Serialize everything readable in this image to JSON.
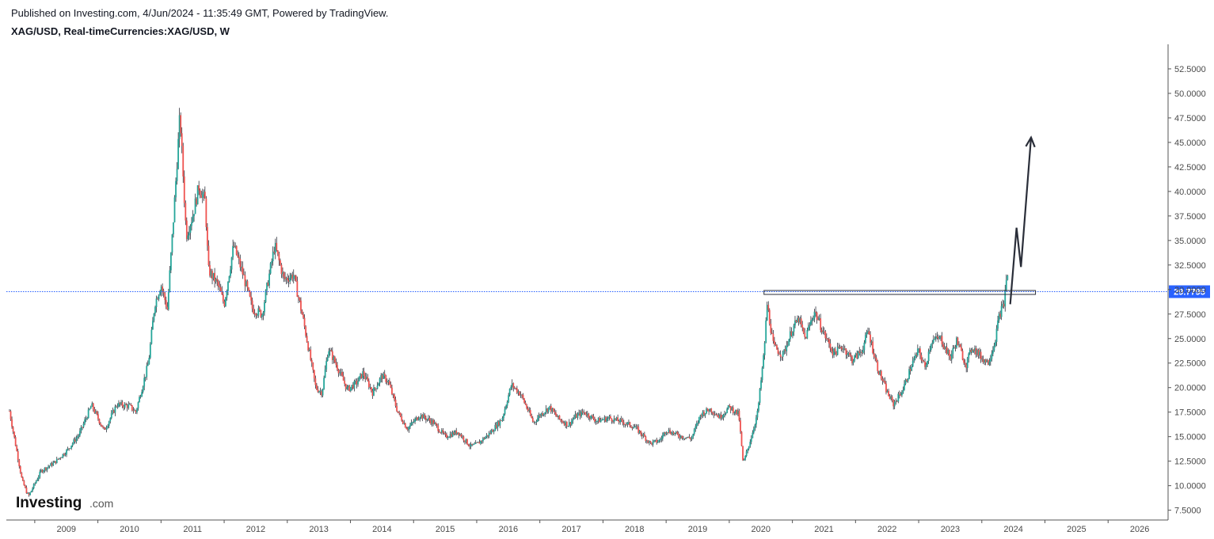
{
  "header": {
    "published": "Published on Investing.com, 4/Jun/2024 - 11:35:49 GMT, Powered by TradingView.",
    "symbol": "XAG/USD, Real-timeCurrencies:XAG/USD, W"
  },
  "logo": {
    "main": "Investing",
    "suffix": ".com"
  },
  "colors": {
    "up": "#26a69a",
    "down": "#ef5350",
    "wick": "#131722",
    "priceLine": "#2962ff",
    "annotation": "#2a2e39",
    "axis": "#555555"
  },
  "chart_data": {
    "type": "candlestick",
    "title": "XAG/USD, Real-timeCurrencies:XAG/USD, W",
    "interval": "weekly",
    "x_tick_labels": [
      "2009",
      "2010",
      "2011",
      "2012",
      "2013",
      "2014",
      "2015",
      "2016",
      "2017",
      "2018",
      "2019",
      "2020",
      "2021",
      "2022",
      "2023",
      "2024",
      "2025",
      "2026"
    ],
    "y_tick_labels": [
      "52.5000",
      "50.0000",
      "47.5000",
      "45.0000",
      "42.5000",
      "40.0000",
      "37.5000",
      "35.0000",
      "32.5000",
      "30.0000",
      "27.5000",
      "25.0000",
      "22.5000",
      "20.0000",
      "17.5000",
      "15.0000",
      "12.5000",
      "10.0000",
      "7.5000"
    ],
    "ylim": [
      6.5,
      55.0
    ],
    "xlim": [
      2008.55,
      2026.95
    ],
    "last_price": 29.7795,
    "last_price_label": "29.7795",
    "price_path": [
      [
        2008.6,
        17.6
      ],
      [
        2008.8,
        10.5
      ],
      [
        2008.9,
        8.9
      ],
      [
        2009.1,
        11.5
      ],
      [
        2009.3,
        12.3
      ],
      [
        2009.5,
        13.5
      ],
      [
        2009.7,
        15.2
      ],
      [
        2009.9,
        18.2
      ],
      [
        2010.1,
        15.6
      ],
      [
        2010.3,
        18.3
      ],
      [
        2010.5,
        18.1
      ],
      [
        2010.6,
        17.5
      ],
      [
        2010.8,
        22.5
      ],
      [
        2010.9,
        28.5
      ],
      [
        2011.0,
        30.5
      ],
      [
        2011.1,
        28.0
      ],
      [
        2011.2,
        37.5
      ],
      [
        2011.3,
        47.8
      ],
      [
        2011.4,
        35.5
      ],
      [
        2011.5,
        37.5
      ],
      [
        2011.6,
        40.5
      ],
      [
        2011.7,
        39.0
      ],
      [
        2011.75,
        32.0
      ],
      [
        2011.9,
        30.5
      ],
      [
        2012.0,
        28.5
      ],
      [
        2012.15,
        34.5
      ],
      [
        2012.3,
        31.5
      ],
      [
        2012.45,
        28.0
      ],
      [
        2012.6,
        27.5
      ],
      [
        2012.7,
        31.0
      ],
      [
        2012.8,
        34.5
      ],
      [
        2012.95,
        31.0
      ],
      [
        2013.1,
        31.5
      ],
      [
        2013.25,
        27.0
      ],
      [
        2013.35,
        23.5
      ],
      [
        2013.45,
        20.0
      ],
      [
        2013.55,
        19.5
      ],
      [
        2013.65,
        24.0
      ],
      [
        2013.8,
        22.0
      ],
      [
        2013.95,
        19.8
      ],
      [
        2014.1,
        20.5
      ],
      [
        2014.2,
        21.5
      ],
      [
        2014.35,
        19.5
      ],
      [
        2014.5,
        21.2
      ],
      [
        2014.6,
        20.6
      ],
      [
        2014.75,
        17.5
      ],
      [
        2014.9,
        15.8
      ],
      [
        2015.0,
        16.5
      ],
      [
        2015.1,
        17.2
      ],
      [
        2015.3,
        16.5
      ],
      [
        2015.5,
        15.0
      ],
      [
        2015.7,
        15.5
      ],
      [
        2015.9,
        14.0
      ],
      [
        2016.0,
        14.2
      ],
      [
        2016.2,
        15.3
      ],
      [
        2016.4,
        16.8
      ],
      [
        2016.55,
        20.3
      ],
      [
        2016.7,
        19.3
      ],
      [
        2016.9,
        16.4
      ],
      [
        2017.0,
        17.2
      ],
      [
        2017.15,
        18.0
      ],
      [
        2017.3,
        16.8
      ],
      [
        2017.45,
        16.2
      ],
      [
        2017.55,
        17.0
      ],
      [
        2017.7,
        17.5
      ],
      [
        2017.9,
        16.6
      ],
      [
        2018.1,
        16.9
      ],
      [
        2018.3,
        16.5
      ],
      [
        2018.5,
        16.0
      ],
      [
        2018.65,
        15.0
      ],
      [
        2018.75,
        14.3
      ],
      [
        2018.9,
        14.6
      ],
      [
        2019.0,
        15.7
      ],
      [
        2019.2,
        15.1
      ],
      [
        2019.4,
        14.8
      ],
      [
        2019.55,
        17.3
      ],
      [
        2019.7,
        17.8
      ],
      [
        2019.85,
        17.0
      ],
      [
        2020.0,
        18.0
      ],
      [
        2020.15,
        17.3
      ],
      [
        2020.22,
        12.2
      ],
      [
        2020.35,
        15.0
      ],
      [
        2020.45,
        17.5
      ],
      [
        2020.55,
        23.5
      ],
      [
        2020.6,
        28.5
      ],
      [
        2020.7,
        24.2
      ],
      [
        2020.85,
        23.3
      ],
      [
        2021.0,
        26.0
      ],
      [
        2021.1,
        27.0
      ],
      [
        2021.2,
        25.0
      ],
      [
        2021.35,
        27.8
      ],
      [
        2021.5,
        25.5
      ],
      [
        2021.65,
        23.5
      ],
      [
        2021.8,
        24.2
      ],
      [
        2021.95,
        22.8
      ],
      [
        2022.1,
        23.8
      ],
      [
        2022.2,
        25.8
      ],
      [
        2022.35,
        22.0
      ],
      [
        2022.5,
        19.5
      ],
      [
        2022.6,
        18.3
      ],
      [
        2022.75,
        19.8
      ],
      [
        2022.9,
        22.5
      ],
      [
        2023.0,
        23.8
      ],
      [
        2023.1,
        22.0
      ],
      [
        2023.2,
        24.8
      ],
      [
        2023.35,
        25.0
      ],
      [
        2023.5,
        23.0
      ],
      [
        2023.6,
        24.8
      ],
      [
        2023.75,
        22.3
      ],
      [
        2023.85,
        24.2
      ],
      [
        2024.0,
        23.0
      ],
      [
        2024.1,
        22.6
      ],
      [
        2024.2,
        24.5
      ],
      [
        2024.28,
        27.5
      ],
      [
        2024.35,
        28.5
      ],
      [
        2024.4,
        32.0
      ],
      [
        2024.42,
        29.8
      ]
    ],
    "annotations": [
      {
        "type": "rectangle",
        "x_start": 2020.55,
        "x_end": 2024.85,
        "y_low": 29.5,
        "y_high": 29.9
      },
      {
        "type": "arrow_path",
        "points": [
          [
            2024.45,
            28.5
          ],
          [
            2024.55,
            36.3
          ],
          [
            2024.62,
            32.3
          ],
          [
            2024.78,
            45.5
          ]
        ]
      }
    ]
  }
}
